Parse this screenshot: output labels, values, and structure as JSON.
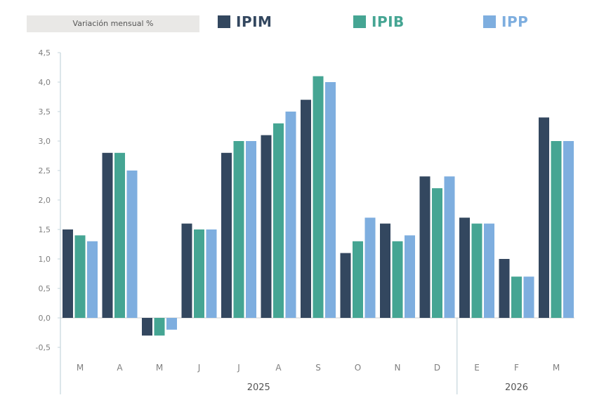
{
  "header": {
    "tag_label": "Variación mensual %"
  },
  "colors": {
    "IPIM": "#33475f",
    "IPIB": "#45a593",
    "IPP": "#7eaedf",
    "legend_IPIM": "#33475f",
    "legend_IPIB": "#45a593",
    "legend_IPP": "#7eaedf",
    "axis": "#c5d6dc",
    "tick_text": "#7f7f7f",
    "zero_line": "#cfcfcf"
  },
  "chart_data": {
    "type": "bar",
    "title": "",
    "xlabel": "",
    "ylabel": "Variación mensual %",
    "ylim": [
      -0.5,
      4.5
    ],
    "yticks": [
      "4,5",
      "4,0",
      "3,5",
      "3,0",
      "2,5",
      "2,0",
      "1,5",
      "1,0",
      "0,5",
      "0,0",
      "-0,5"
    ],
    "ytick_values": [
      4.5,
      4.0,
      3.5,
      3.0,
      2.5,
      2.0,
      1.5,
      1.0,
      0.5,
      0.0,
      -0.5
    ],
    "categories": [
      "M",
      "A",
      "M",
      "J",
      "J",
      "A",
      "S",
      "O",
      "N",
      "D",
      "E",
      "F",
      "M"
    ],
    "year_groups": [
      {
        "label": "2025",
        "count": 10
      },
      {
        "label": "2026",
        "count": 3
      }
    ],
    "series": [
      {
        "name": "IPIM",
        "values": [
          1.5,
          2.8,
          -0.3,
          1.6,
          2.8,
          3.1,
          3.7,
          1.1,
          1.6,
          2.4,
          1.7,
          1.0,
          3.4
        ]
      },
      {
        "name": "IPIB",
        "values": [
          1.4,
          2.8,
          -0.3,
          1.5,
          3.0,
          3.3,
          4.1,
          1.3,
          1.3,
          2.2,
          1.6,
          0.7,
          3.0
        ]
      },
      {
        "name": "IPP",
        "values": [
          1.3,
          2.5,
          -0.2,
          1.5,
          3.0,
          3.5,
          4.0,
          1.7,
          1.4,
          2.4,
          1.6,
          0.7,
          3.0
        ]
      }
    ],
    "legend": [
      "IPIM",
      "IPIB",
      "IPP"
    ],
    "legend_position": "top",
    "grid": false
  }
}
